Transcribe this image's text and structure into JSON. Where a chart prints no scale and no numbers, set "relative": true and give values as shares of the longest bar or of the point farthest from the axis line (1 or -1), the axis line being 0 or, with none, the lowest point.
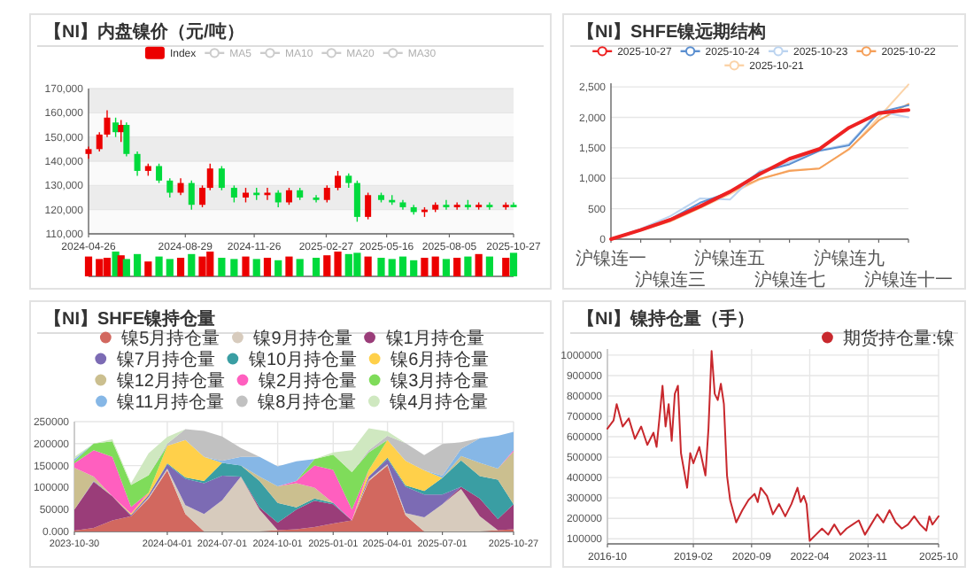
{
  "chart_data": [
    {
      "type": "candlestick",
      "title": "【NI】内盘镍价（元/吨）",
      "legend": "top",
      "grid": "y",
      "x": [
        "2024-04-26",
        "2024-05-10",
        "2024-05-20",
        "2024-05-31",
        "2024-06-07",
        "2024-06-14",
        "2024-06-28",
        "2024-07-12",
        "2024-07-26",
        "2024-08-09",
        "2024-08-23",
        "2024-09-06",
        "2024-09-20",
        "2024-09-30",
        "2024-10-15",
        "2024-10-31",
        "2024-11-15",
        "2024-11-29",
        "2024-12-13",
        "2024-12-27",
        "2025-01-10",
        "2025-01-24",
        "2025-02-14",
        "2025-02-28",
        "2025-03-14",
        "2025-03-28",
        "2025-04-08",
        "2025-04-22",
        "2025-05-09",
        "2025-05-23",
        "2025-06-06",
        "2025-06-20",
        "2025-07-04",
        "2025-07-18",
        "2025-08-01",
        "2025-08-15",
        "2025-08-29",
        "2025-09-12",
        "2025-09-26",
        "2025-10-17",
        "2025-10-27"
      ],
      "xlim": [
        "2024-04-26",
        "2025-10-27"
      ],
      "xticks": [
        "2024-04-26",
        "2024-08-29",
        "2024-11-26",
        "2025-02-27",
        "2025-05-16",
        "2025-08-05",
        "2025-10-27"
      ],
      "ylim": [
        110000,
        170000
      ],
      "yticks": [
        {
          "value": 110000,
          "label": "110,000"
        },
        {
          "value": 120000,
          "label": "120,000"
        },
        {
          "value": 130000,
          "label": "130,000"
        },
        {
          "value": 140000,
          "label": "140,000"
        },
        {
          "value": 150000,
          "label": "150,000"
        },
        {
          "value": 160000,
          "label": "160,000"
        },
        {
          "value": 170000,
          "label": "170,000"
        }
      ],
      "series": [
        {
          "name": "Index",
          "type": "candlestick",
          "color": "#ec0000",
          "ohlc": [
            [
              143000,
              146000,
              141000,
              145000
            ],
            [
              145000,
              152000,
              144000,
              151000
            ],
            [
              151000,
              161000,
              150000,
              158000
            ],
            [
              156000,
              158000,
              150000,
              152000
            ],
            [
              152000,
              157000,
              148000,
              155000
            ],
            [
              155000,
              156000,
              142000,
              143000
            ],
            [
              143000,
              144000,
              134000,
              136000
            ],
            [
              136000,
              139000,
              134000,
              138000
            ],
            [
              138000,
              139000,
              131000,
              132000
            ],
            [
              132000,
              133000,
              125000,
              127000
            ],
            [
              127000,
              133000,
              126000,
              131000
            ],
            [
              131000,
              132000,
              120000,
              122000
            ],
            [
              122000,
              130000,
              121000,
              129000
            ],
            [
              129000,
              139000,
              128000,
              137000
            ],
            [
              137000,
              138000,
              128000,
              129000
            ],
            [
              129000,
              130000,
              123000,
              125000
            ],
            [
              125000,
              129000,
              123000,
              127000
            ],
            [
              127000,
              129000,
              124000,
              126000
            ],
            [
              126000,
              129000,
              124000,
              127000
            ],
            [
              127000,
              128000,
              121000,
              123000
            ],
            [
              123000,
              129000,
              122000,
              128000
            ],
            [
              128000,
              129000,
              124000,
              125000
            ],
            [
              125000,
              126000,
              123000,
              124000
            ],
            [
              124000,
              130000,
              123000,
              129000
            ],
            [
              129000,
              136000,
              128000,
              134000
            ],
            [
              134000,
              135000,
              129000,
              131000
            ],
            [
              131000,
              132000,
              115000,
              117000
            ],
            [
              117000,
              127000,
              116000,
              126000
            ],
            [
              126000,
              127000,
              123000,
              124000
            ],
            [
              124000,
              126000,
              122000,
              123000
            ],
            [
              123000,
              124000,
              120000,
              121000
            ],
            [
              121000,
              122000,
              118000,
              119000
            ],
            [
              119000,
              121000,
              117000,
              120000
            ],
            [
              120000,
              123000,
              119000,
              122000
            ],
            [
              122000,
              124000,
              120000,
              121000
            ],
            [
              121000,
              123000,
              120000,
              122000
            ],
            [
              122000,
              124000,
              120000,
              121000
            ],
            [
              121000,
              123000,
              120000,
              122000
            ],
            [
              122000,
              123000,
              120000,
              121000
            ],
            [
              121000,
              123000,
              120000,
              122000
            ],
            [
              122000,
              123000,
              121000,
              121000
            ]
          ],
          "colors": [
            "#ec0000",
            "#ec0000",
            "#ec0000",
            "#00da3c",
            "#ec0000",
            "#00da3c",
            "#00da3c",
            "#ec0000",
            "#00da3c",
            "#00da3c",
            "#ec0000",
            "#00da3c",
            "#ec0000",
            "#ec0000",
            "#00da3c",
            "#00da3c",
            "#ec0000",
            "#00da3c",
            "#ec0000",
            "#00da3c",
            "#ec0000",
            "#00da3c",
            "#00da3c",
            "#ec0000",
            "#ec0000",
            "#00da3c",
            "#00da3c",
            "#ec0000",
            "#00da3c",
            "#00da3c",
            "#00da3c",
            "#00da3c",
            "#ec0000",
            "#ec0000",
            "#00da3c",
            "#ec0000",
            "#00da3c",
            "#ec0000",
            "#00da3c",
            "#ec0000",
            "#00da3c"
          ]
        },
        {
          "name": "MA5",
          "type": "line",
          "color": "#cccccc",
          "values": [
            null,
            null,
            null,
            null,
            null,
            null,
            null,
            null,
            null,
            null,
            null,
            null,
            null,
            null,
            null,
            null,
            null,
            null,
            null,
            null,
            null,
            null,
            null,
            null,
            null,
            null,
            null,
            null,
            null,
            null,
            null,
            null,
            null,
            null,
            null,
            null,
            null,
            null,
            null,
            null,
            null
          ]
        },
        {
          "name": "MA10",
          "type": "line",
          "color": "#cccccc",
          "values": [
            null,
            null,
            null,
            null,
            null,
            null,
            null,
            null,
            null,
            null,
            null,
            null,
            null,
            null,
            null,
            null,
            null,
            null,
            null,
            null,
            null,
            null,
            null,
            null,
            null,
            null,
            null,
            null,
            null,
            null,
            null,
            null,
            null,
            null,
            null,
            null,
            null,
            null,
            null,
            null,
            null
          ]
        },
        {
          "name": "MA20",
          "type": "line",
          "color": "#cccccc",
          "values": [
            null,
            null,
            null,
            null,
            null,
            null,
            null,
            null,
            null,
            null,
            null,
            null,
            null,
            null,
            null,
            null,
            null,
            null,
            null,
            null,
            null,
            null,
            null,
            null,
            null,
            null,
            null,
            null,
            null,
            null,
            null,
            null,
            null,
            null,
            null,
            null,
            null,
            null,
            null,
            null,
            null
          ]
        },
        {
          "name": "MA30",
          "type": "line",
          "color": "#cccccc",
          "values": [
            null,
            null,
            null,
            null,
            null,
            null,
            null,
            null,
            null,
            null,
            null,
            null,
            null,
            null,
            null,
            null,
            null,
            null,
            null,
            null,
            null,
            null,
            null,
            null,
            null,
            null,
            null,
            null,
            null,
            null,
            null,
            null,
            null,
            null,
            null,
            null,
            null,
            null,
            null,
            null,
            null
          ]
        }
      ]
    },
    {
      "type": "bar",
      "relative": true,
      "x": [
        "2024-04-26",
        "2024-05-10",
        "2024-05-20",
        "2024-05-31",
        "2024-06-07",
        "2024-06-14",
        "2024-06-28",
        "2024-07-12",
        "2024-07-26",
        "2024-08-09",
        "2024-08-23",
        "2024-09-06",
        "2024-09-20",
        "2024-09-30",
        "2024-10-15",
        "2024-10-31",
        "2024-11-15",
        "2024-11-29",
        "2024-12-13",
        "2024-12-27",
        "2025-01-10",
        "2025-01-24",
        "2025-02-14",
        "2025-02-28",
        "2025-03-14",
        "2025-03-28",
        "2025-04-08",
        "2025-04-22",
        "2025-05-09",
        "2025-05-23",
        "2025-06-06",
        "2025-06-20",
        "2025-07-04",
        "2025-07-18",
        "2025-08-01",
        "2025-08-15",
        "2025-08-29",
        "2025-09-12",
        "2025-09-26",
        "2025-10-17",
        "2025-10-27"
      ],
      "xlim": [
        "2024-04-26",
        "2025-10-27"
      ],
      "values": [
        0.8,
        0.7,
        0.75,
        1,
        0.85,
        0.7,
        0.9,
        0.6,
        0.8,
        0.7,
        0.75,
        0.9,
        0.8,
        1,
        0.75,
        0.7,
        0.8,
        0.7,
        0.75,
        0.65,
        0.8,
        0.7,
        0.75,
        0.85,
        1,
        0.9,
        0.95,
        0.8,
        0.75,
        0.7,
        0.8,
        0.65,
        0.75,
        0.8,
        0.7,
        0.75,
        0.8,
        0.9,
        0.8,
        0.75,
        0.95
      ],
      "colors": [
        "#ec0000",
        "#ec0000",
        "#ec0000",
        "#00da3c",
        "#ec0000",
        "#00da3c",
        "#00da3c",
        "#ec0000",
        "#00da3c",
        "#00da3c",
        "#ec0000",
        "#00da3c",
        "#ec0000",
        "#ec0000",
        "#00da3c",
        "#00da3c",
        "#ec0000",
        "#00da3c",
        "#ec0000",
        "#00da3c",
        "#ec0000",
        "#00da3c",
        "#00da3c",
        "#ec0000",
        "#ec0000",
        "#00da3c",
        "#00da3c",
        "#ec0000",
        "#00da3c",
        "#00da3c",
        "#00da3c",
        "#00da3c",
        "#ec0000",
        "#ec0000",
        "#00da3c",
        "#ec0000",
        "#00da3c",
        "#ec0000",
        "#00da3c",
        "#ec0000",
        "#00da3c"
      ]
    },
    {
      "type": "line",
      "title": "【NI】SHFE镍远期结构",
      "legend": "top",
      "grid": "y",
      "categories": [
        "沪镍连一",
        null,
        "沪镍连三",
        null,
        "沪镍连五",
        null,
        "沪镍连七",
        null,
        "沪镍连九",
        null,
        "沪镍连十一"
      ],
      "ylim": [
        0,
        2560
      ],
      "yticks": [
        0,
        500,
        {
          "value": 1000,
          "label": "1,000"
        },
        {
          "value": 1500,
          "label": "1,500"
        },
        {
          "value": 2000,
          "label": "2,000"
        },
        {
          "value": 2500,
          "label": "2,500"
        }
      ],
      "series": [
        {
          "name": "2025-10-27",
          "color": "#ee2222",
          "values": [
            0,
            150,
            320,
            540,
            780,
            1070,
            1320,
            1480,
            1830,
            2070,
            2120
          ]
        },
        {
          "name": "2025-10-24",
          "color": "#5b8fd0",
          "values": [
            0,
            160,
            330,
            600,
            770,
            1100,
            1230,
            1450,
            1540,
            2080,
            2200
          ]
        },
        {
          "name": "2025-10-23",
          "color": "#bcd4f0",
          "values": [
            0,
            170,
            380,
            670,
            650,
            1120,
            1260,
            1460,
            1560,
            2100,
            2000
          ]
        },
        {
          "name": "2025-10-22",
          "color": "#f5a05a",
          "values": [
            0,
            150,
            300,
            520,
            770,
            990,
            1120,
            1160,
            1480,
            1950,
            2220
          ]
        },
        {
          "name": "2025-10-21",
          "color": "#fbd3a8",
          "values": [
            0,
            140,
            290,
            510,
            740,
            980,
            1130,
            1160,
            1470,
            2000,
            2540
          ]
        }
      ]
    },
    {
      "type": "area",
      "stacked": true,
      "title": "【NI】SHFE镍持仓量",
      "legend": "top",
      "grid": true,
      "x": [
        "2023-10-30",
        "2023-12-01",
        "2024-01-01",
        "2024-02-01",
        "2024-03-01",
        "2024-04-01",
        "2024-05-01",
        "2024-06-01",
        "2024-07-01",
        "2024-08-01",
        "2024-09-01",
        "2024-10-01",
        "2024-11-01",
        "2024-12-01",
        "2025-01-01",
        "2025-02-01",
        "2025-03-01",
        "2025-04-01",
        "2025-05-01",
        "2025-06-01",
        "2025-07-01",
        "2025-08-01",
        "2025-09-01",
        "2025-10-01",
        "2025-10-27"
      ],
      "xlim": [
        "2023-10-30",
        "2025-10-27"
      ],
      "xticks": [
        "2023-10-30",
        "2024-04-01",
        "2024-07-01",
        "2024-10-01",
        "2025-01-01",
        "2025-04-01",
        "2025-07-01",
        "2025-10-27"
      ],
      "ylim": [
        0,
        250000
      ],
      "yticks": [
        {
          "value": 0,
          "label": "0.000"
        },
        50000,
        100000,
        150000,
        200000,
        250000
      ],
      "series": [
        {
          "name": "镍5月持仓量",
          "color": "#d2685f",
          "values": [
            2000,
            8000,
            25000,
            35000,
            75000,
            139000,
            40000,
            0,
            null,
            null,
            0,
            3000,
            5000,
            10000,
            18000,
            25000,
            115000,
            150000,
            37000,
            0,
            null,
            null,
            0,
            3000,
            5000
          ]
        },
        {
          "name": "镍9月持仓量",
          "color": "#d7cbbd",
          "values": [
            null,
            null,
            null,
            0,
            3000,
            4000,
            20000,
            40000,
            71000,
            125000,
            50000,
            0,
            null,
            null,
            null,
            0,
            3000,
            3000,
            5000,
            32000,
            62000,
            97000,
            35000,
            0,
            null
          ]
        },
        {
          "name": "镍1月持仓量",
          "color": "#9a3d79",
          "values": [
            48000,
            105000,
            55000,
            0,
            null,
            null,
            null,
            null,
            null,
            0,
            5000,
            17000,
            45000,
            60000,
            44000,
            0,
            null,
            null,
            null,
            null,
            0,
            5000,
            40000,
            25000,
            57000
          ]
        },
        {
          "name": "镍7月持仓量",
          "color": "#7c6bb4",
          "values": [
            0,
            2000,
            0,
            3000,
            5000,
            10000,
            60000,
            70000,
            56000,
            0,
            null,
            null,
            null,
            null,
            null,
            0,
            7000,
            12000,
            60000,
            52000,
            22000,
            0,
            null,
            null,
            null
          ]
        },
        {
          "name": "镍10月持仓量",
          "color": "#3a9ea3",
          "values": [
            null,
            null,
            null,
            null,
            0,
            2000,
            3000,
            5000,
            29000,
            25000,
            60000,
            45000,
            5000,
            5000,
            3000,
            0,
            0,
            3000,
            3000,
            8000,
            38000,
            60000,
            51000,
            90000,
            0
          ]
        },
        {
          "name": "镍6月持仓量",
          "color": "#ffd04a",
          "values": [
            null,
            null,
            0,
            3000,
            5000,
            40000,
            85000,
            55000,
            0,
            null,
            null,
            null,
            null,
            null,
            null,
            0,
            15000,
            40000,
            56000,
            47000,
            0,
            null,
            null,
            null,
            null
          ]
        },
        {
          "name": "镍12月持仓量",
          "color": "#cbbf8f",
          "values": [
            95000,
            10000,
            0,
            null,
            null,
            null,
            null,
            null,
            null,
            0,
            10000,
            38000,
            55000,
            25000,
            0,
            null,
            null,
            null,
            null,
            null,
            0,
            10000,
            30000,
            25000,
            120000
          ]
        },
        {
          "name": "镍2月持仓量",
          "color": "#ff5fbf",
          "values": [
            10000,
            60000,
            90000,
            15000,
            0,
            null,
            null,
            null,
            null,
            null,
            null,
            0,
            5000,
            50000,
            75000,
            25000,
            0,
            null,
            null,
            null,
            null,
            null,
            null,
            0,
            3000
          ]
        },
        {
          "name": "镍3月持仓量",
          "color": "#7fdc5a",
          "values": [
            5000,
            15000,
            35000,
            50000,
            40000,
            0,
            null,
            null,
            null,
            null,
            null,
            null,
            0,
            15000,
            35000,
            85000,
            40000,
            0,
            null,
            null,
            null,
            null,
            null,
            null,
            null
          ]
        },
        {
          "name": "镍11月持仓量",
          "color": "#86b7e6",
          "values": [
            5000,
            0,
            null,
            null,
            null,
            null,
            null,
            0,
            5000,
            20000,
            45000,
            45000,
            45000,
            0,
            null,
            null,
            null,
            null,
            null,
            0,
            5000,
            16000,
            56000,
            75000,
            42000
          ]
        },
        {
          "name": "镍8月持仓量",
          "color": "#c1c1c1",
          "values": [
            null,
            null,
            null,
            null,
            0,
            5000,
            25000,
            59000,
            55000,
            20000,
            0,
            null,
            null,
            null,
            null,
            0,
            5000,
            10000,
            40000,
            35000,
            72000,
            15000,
            0,
            null,
            null
          ]
        },
        {
          "name": "镍4月持仓量",
          "color": "#cfe8c0",
          "values": [
            5000,
            0,
            5000,
            4000,
            50000,
            15000,
            0,
            null,
            null,
            null,
            null,
            null,
            null,
            0,
            5000,
            50000,
            50000,
            10000,
            0,
            null,
            null,
            null,
            null,
            null,
            null
          ]
        }
      ]
    },
    {
      "type": "line",
      "title": "【NI】镍持仓量（手）",
      "legend": "top right",
      "grid": true,
      "x": [
        "2016-10",
        "2016-12",
        "2017-01",
        "2017-03",
        "2017-05",
        "2017-07",
        "2017-09",
        "2017-11",
        "2018-01",
        "2018-02",
        "2018-03",
        "2018-04",
        "2018-05",
        "2018-06",
        "2018-07",
        "2018-08",
        "2018-09",
        "2018-10",
        "2018-12",
        "2019-01",
        "2019-02",
        "2019-04",
        "2019-06",
        "2019-07",
        "2019-08",
        "2019-09",
        "2019-10",
        "2019-11",
        "2019-12",
        "2020-01",
        "2020-02",
        "2020-04",
        "2020-06",
        "2020-08",
        "2020-10",
        "2020-11",
        "2020-12",
        "2021-02",
        "2021-04",
        "2021-06",
        "2021-08",
        "2021-10",
        "2021-12",
        "2022-01",
        "2022-02",
        "2022-03",
        "2022-04",
        "2022-06",
        "2022-08",
        "2022-10",
        "2022-12",
        "2023-02",
        "2023-04",
        "2023-06",
        "2023-08",
        "2023-10",
        "2023-12",
        "2024-02",
        "2024-04",
        "2024-06",
        "2024-08",
        "2024-10",
        "2024-12",
        "2025-02",
        "2025-04",
        "2025-06",
        "2025-07",
        "2025-08",
        "2025-09",
        "2025-10"
      ],
      "xlim": [
        "2016-10",
        "2025-10"
      ],
      "xticks": [
        "2016-10",
        "2019-02",
        "2020-09",
        "2022-04",
        "2023-11",
        "2025-10"
      ],
      "ylim": [
        75000,
        1030000
      ],
      "yticks": [
        100000,
        200000,
        300000,
        400000,
        500000,
        600000,
        700000,
        800000,
        900000,
        1000000
      ],
      "series": [
        {
          "name": "期货持仓量:镍",
          "color": "#c8282d",
          "values": [
            640000,
            680000,
            760000,
            650000,
            690000,
            590000,
            650000,
            560000,
            620000,
            550000,
            690000,
            850000,
            650000,
            760000,
            580000,
            810000,
            850000,
            520000,
            350000,
            520000,
            470000,
            550000,
            410000,
            640000,
            1020000,
            810000,
            780000,
            860000,
            760000,
            410000,
            290000,
            180000,
            240000,
            290000,
            320000,
            280000,
            350000,
            310000,
            220000,
            270000,
            210000,
            270000,
            350000,
            280000,
            310000,
            270000,
            90000,
            120000,
            150000,
            120000,
            170000,
            120000,
            150000,
            170000,
            190000,
            120000,
            170000,
            220000,
            180000,
            240000,
            180000,
            150000,
            170000,
            210000,
            170000,
            140000,
            210000,
            170000,
            190000,
            210000
          ]
        }
      ]
    }
  ]
}
